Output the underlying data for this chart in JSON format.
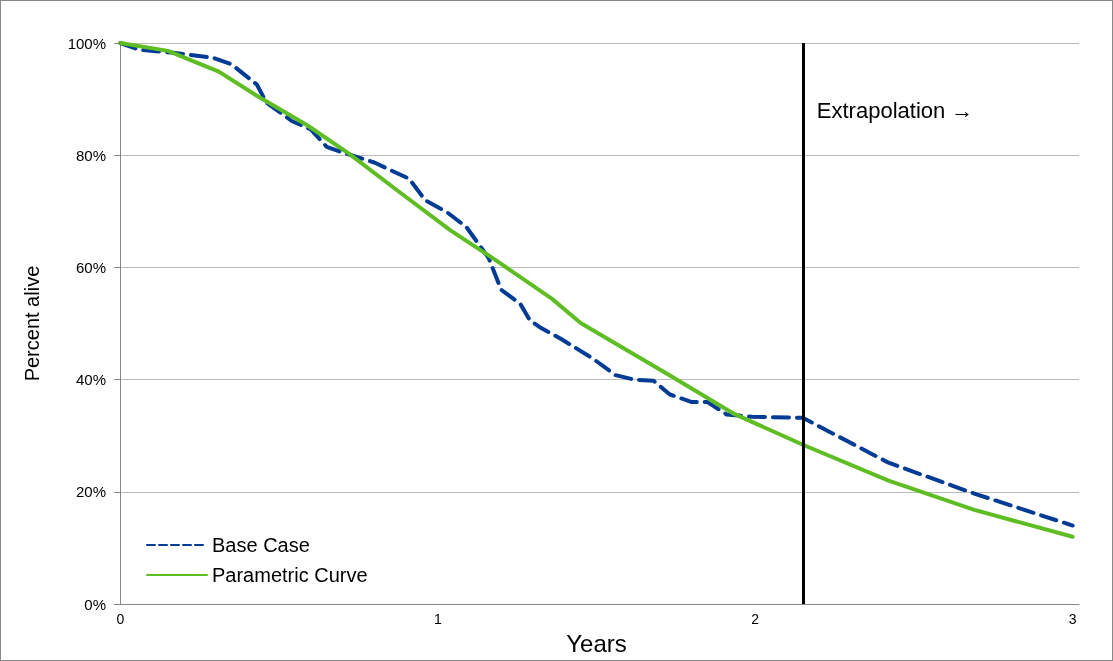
{
  "chart_data": {
    "type": "line",
    "xlabel": "Years",
    "ylabel": "Percent alive",
    "xlim": [
      -0.02,
      3.02
    ],
    "xticks": [
      0,
      1,
      2,
      3
    ],
    "ylim": [
      0,
      100
    ],
    "yticks": [
      {
        "value": 0,
        "label": "0%"
      },
      {
        "value": 20,
        "label": "20%"
      },
      {
        "value": 40,
        "label": "40%"
      },
      {
        "value": 60,
        "label": "60%"
      },
      {
        "value": 80,
        "label": "80%"
      },
      {
        "value": 100,
        "label": "100%"
      }
    ],
    "grid": "y",
    "legend": "bottom left",
    "marker": "none",
    "ref_lines": [
      {
        "axis": "x",
        "value": 2.15,
        "label": "Extrapolation →",
        "color": "#000000",
        "line_style": "solid"
      }
    ],
    "series": [
      {
        "name": "Base Case",
        "color": "#003b96",
        "line_style": "dashed",
        "x": [
          0,
          0.06,
          0.16,
          0.29,
          0.35,
          0.43,
          0.46,
          0.54,
          0.6,
          0.65,
          0.71,
          0.8,
          0.91,
          0.96,
          1.03,
          1.09,
          1.16,
          1.2,
          1.26,
          1.29,
          1.32,
          1.39,
          1.49,
          1.56,
          1.62,
          1.68,
          1.73,
          1.8,
          1.85,
          1.91,
          1.99,
          2.15,
          2.42,
          2.69,
          3
        ],
        "values": [
          100,
          98.8,
          98.3,
          97.4,
          96.2,
          92.6,
          89.4,
          86.1,
          84.6,
          81.5,
          80.3,
          78.7,
          75.8,
          72,
          69.8,
          67.2,
          61.7,
          56,
          53.5,
          50.6,
          49.4,
          47.2,
          43.7,
          40.8,
          40,
          39.8,
          37.4,
          36,
          36,
          33.8,
          33.4,
          33.2,
          25.2,
          19.7,
          14
        ]
      },
      {
        "name": "Parametric Curve",
        "color": "#5fbd24",
        "line_style": "solid",
        "x": [
          0,
          0.15,
          0.31,
          0.43,
          0.59,
          0.72,
          0.88,
          1.04,
          1.18,
          1.36,
          1.45,
          1.73,
          1.93,
          2.15,
          2.42,
          2.69,
          3
        ],
        "values": [
          100,
          98.6,
          94.9,
          90.6,
          85.3,
          80.3,
          73.4,
          66.6,
          61.4,
          54.4,
          50.1,
          40.8,
          34,
          28.4,
          22,
          16.8,
          12
        ]
      }
    ]
  }
}
